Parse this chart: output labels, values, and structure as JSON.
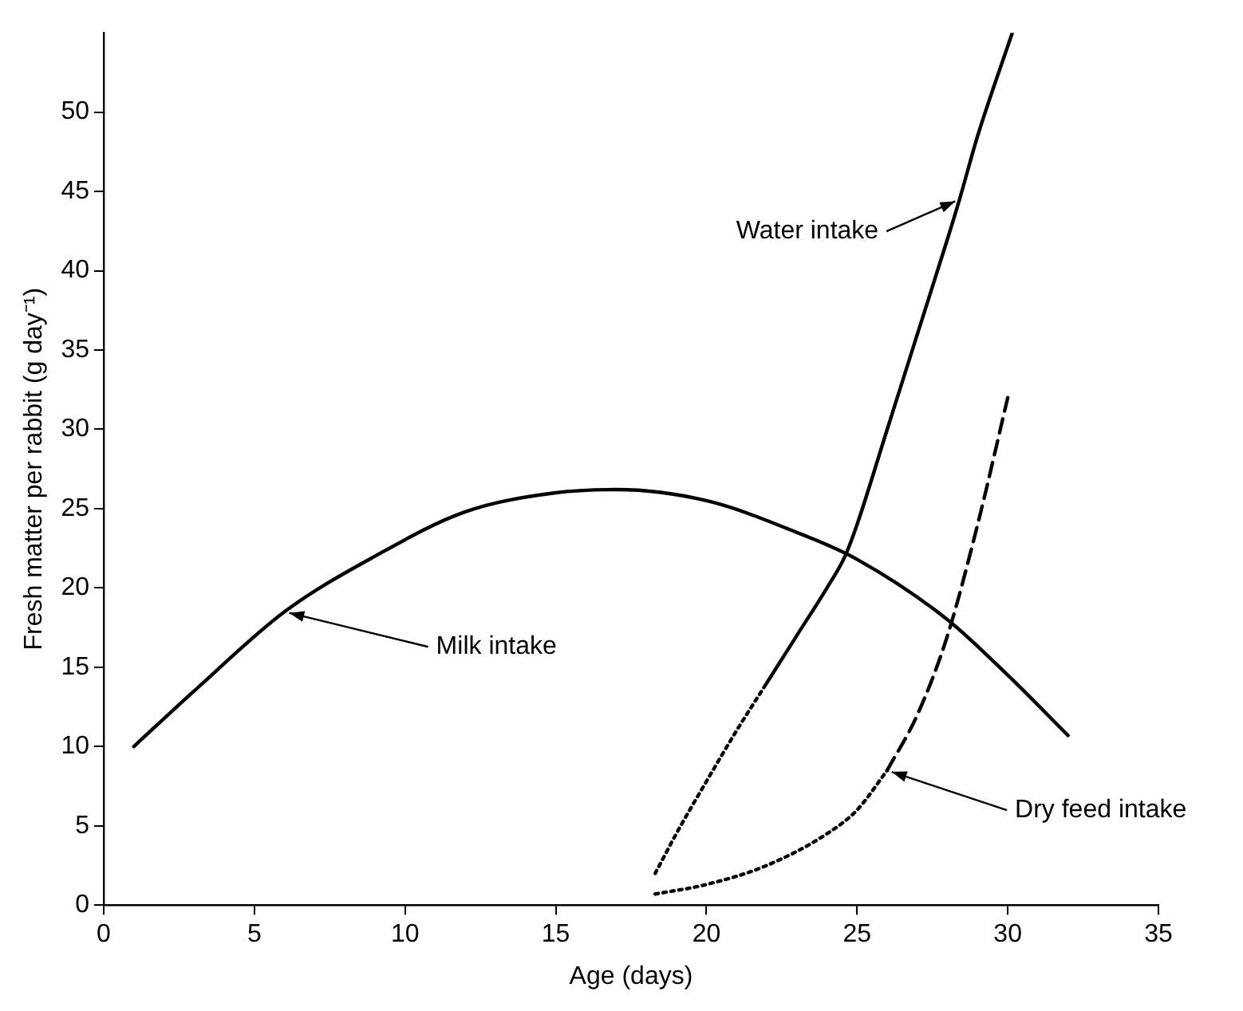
{
  "chart_data": {
    "type": "line",
    "xlabel": "Age (days)",
    "ylabel": "Fresh matter per rabbit (g day⁻¹)",
    "xlim": [
      0,
      35
    ],
    "ylim": [
      0,
      55
    ],
    "xticks": [
      0,
      5,
      10,
      15,
      20,
      25,
      30,
      35
    ],
    "yticks": [
      0,
      5,
      10,
      15,
      20,
      25,
      30,
      35,
      40,
      45,
      50
    ],
    "legend": false,
    "marker": "none",
    "series": [
      {
        "color": "#000000",
        "line_style": "solid",
        "x": [
          1,
          3,
          6,
          9,
          12,
          15,
          17,
          20,
          23,
          25,
          28,
          30,
          32
        ],
        "values": [
          10,
          13.5,
          18.5,
          22,
          24.8,
          26,
          26.2,
          25.5,
          23.5,
          21.8,
          18,
          14.5,
          10.7
        ]
      },
      {
        "color": "#000000",
        "line_style": "dotted",
        "x": [
          18.3,
          19,
          20,
          21,
          22
        ],
        "values": [
          2,
          4.5,
          7.8,
          11,
          14
        ]
      },
      {
        "color": "#000000",
        "line_style": "solid",
        "x": [
          22,
          23,
          24,
          24.6,
          25,
          26,
          27,
          28,
          28.4,
          29,
          30.15
        ],
        "values": [
          14,
          17,
          20,
          22,
          24,
          30,
          36,
          42,
          44.5,
          48.5,
          55
        ]
      },
      {
        "color": "#000000",
        "line_style": "dotted",
        "x": [
          18.3,
          20,
          22,
          24,
          25,
          26
        ],
        "values": [
          0.7,
          1.3,
          2.5,
          4.5,
          6,
          8.5
        ]
      },
      {
        "color": "#000000",
        "line_style": "dashed",
        "x": [
          26,
          27,
          28,
          29,
          30
        ],
        "values": [
          8.5,
          12,
          17,
          24,
          32
        ]
      }
    ],
    "annotations": [
      {
        "text": "Milk intake",
        "x": 6,
        "y": 18.5
      },
      {
        "text": "Water intake",
        "x": 28.4,
        "y": 44.5
      },
      {
        "text": "Dry feed intake",
        "x": 26,
        "y": 8.5
      }
    ]
  }
}
